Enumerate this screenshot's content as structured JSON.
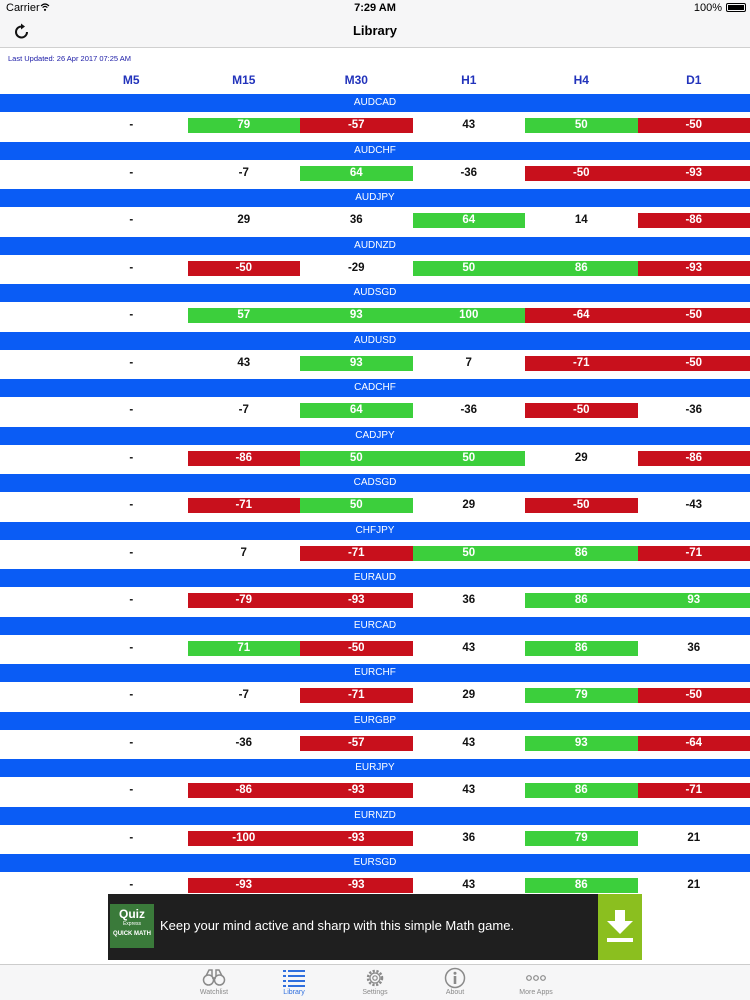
{
  "status": {
    "carrier": "Carrier",
    "time": "7:29 AM",
    "battery": "100%"
  },
  "nav": {
    "title": "Library"
  },
  "last_updated": "Last Updated: 26 Apr 2017 07:25 AM",
  "columns": [
    "M5",
    "M15",
    "M30",
    "H1",
    "H4",
    "D1"
  ],
  "colors": {
    "band": "#0a5cf5",
    "positive": "#3ccf3c",
    "negative": "#c8101c",
    "header_text": "#2233bb",
    "tab_active": "#2f6fde"
  },
  "rows": [
    {
      "pair": "AUDCAD",
      "values": [
        "-",
        "79",
        "-57",
        "43",
        "50",
        "-50"
      ],
      "styles": [
        "",
        "pos",
        "neg",
        "",
        "pos",
        "neg"
      ]
    },
    {
      "pair": "AUDCHF",
      "values": [
        "-",
        "-7",
        "64",
        "-36",
        "-50",
        "-93"
      ],
      "styles": [
        "",
        "",
        "pos",
        "",
        "neg",
        "neg"
      ]
    },
    {
      "pair": "AUDJPY",
      "values": [
        "-",
        "29",
        "36",
        "64",
        "14",
        "-86"
      ],
      "styles": [
        "",
        "",
        "",
        "pos",
        "",
        "neg"
      ]
    },
    {
      "pair": "AUDNZD",
      "values": [
        "-",
        "-50",
        "-29",
        "50",
        "86",
        "-93"
      ],
      "styles": [
        "",
        "neg",
        "",
        "pos",
        "pos",
        "neg"
      ]
    },
    {
      "pair": "AUDSGD",
      "values": [
        "-",
        "57",
        "93",
        "100",
        "-64",
        "-50"
      ],
      "styles": [
        "",
        "pos",
        "pos",
        "pos",
        "neg",
        "neg"
      ]
    },
    {
      "pair": "AUDUSD",
      "values": [
        "-",
        "43",
        "93",
        "7",
        "-71",
        "-50"
      ],
      "styles": [
        "",
        "",
        "pos",
        "",
        "neg",
        "neg"
      ]
    },
    {
      "pair": "CADCHF",
      "values": [
        "-",
        "-7",
        "64",
        "-36",
        "-50",
        "-36"
      ],
      "styles": [
        "",
        "",
        "pos",
        "",
        "neg",
        ""
      ]
    },
    {
      "pair": "CADJPY",
      "values": [
        "-",
        "-86",
        "50",
        "50",
        "29",
        "-86"
      ],
      "styles": [
        "",
        "neg",
        "pos",
        "pos",
        "",
        "neg"
      ]
    },
    {
      "pair": "CADSGD",
      "values": [
        "-",
        "-71",
        "50",
        "29",
        "-50",
        "-43"
      ],
      "styles": [
        "",
        "neg",
        "pos",
        "",
        "neg",
        ""
      ]
    },
    {
      "pair": "CHFJPY",
      "values": [
        "-",
        "7",
        "-71",
        "50",
        "86",
        "-71"
      ],
      "styles": [
        "",
        "",
        "neg",
        "pos",
        "pos",
        "neg"
      ]
    },
    {
      "pair": "EURAUD",
      "values": [
        "-",
        "-79",
        "-93",
        "36",
        "86",
        "93"
      ],
      "styles": [
        "",
        "neg",
        "neg",
        "",
        "pos",
        "pos"
      ]
    },
    {
      "pair": "EURCAD",
      "values": [
        "-",
        "71",
        "-50",
        "43",
        "86",
        "36"
      ],
      "styles": [
        "",
        "pos",
        "neg",
        "",
        "pos",
        ""
      ]
    },
    {
      "pair": "EURCHF",
      "values": [
        "-",
        "-7",
        "-71",
        "29",
        "79",
        "-50"
      ],
      "styles": [
        "",
        "",
        "neg",
        "",
        "pos",
        "neg"
      ]
    },
    {
      "pair": "EURGBP",
      "values": [
        "-",
        "-36",
        "-57",
        "43",
        "93",
        "-64"
      ],
      "styles": [
        "",
        "",
        "neg",
        "",
        "pos",
        "neg"
      ]
    },
    {
      "pair": "EURJPY",
      "values": [
        "-",
        "-86",
        "-93",
        "43",
        "86",
        "-71"
      ],
      "styles": [
        "",
        "neg",
        "neg",
        "",
        "pos",
        "neg"
      ]
    },
    {
      "pair": "EURNZD",
      "values": [
        "-",
        "-100",
        "-93",
        "36",
        "79",
        "21"
      ],
      "styles": [
        "",
        "neg",
        "neg",
        "",
        "pos",
        ""
      ]
    },
    {
      "pair": "EURSGD",
      "values": [
        "-",
        "-93",
        "-93",
        "43",
        "86",
        "21"
      ],
      "styles": [
        "",
        "neg",
        "neg",
        "",
        "pos",
        ""
      ]
    }
  ],
  "ad": {
    "logo_line1": "Quiz",
    "logo_line2": "Express",
    "logo_line3": "QUICK MATH",
    "text": "Keep your mind active and sharp with this simple Math game.",
    "download_icon": "download-icon"
  },
  "tabs": [
    {
      "label": "Watchlist",
      "icon": "binoculars-icon"
    },
    {
      "label": "Library",
      "icon": "list-icon",
      "active": true
    },
    {
      "label": "Settings",
      "icon": "gear-icon"
    },
    {
      "label": "About",
      "icon": "info-icon"
    },
    {
      "label": "More Apps",
      "icon": "more-icon"
    }
  ]
}
